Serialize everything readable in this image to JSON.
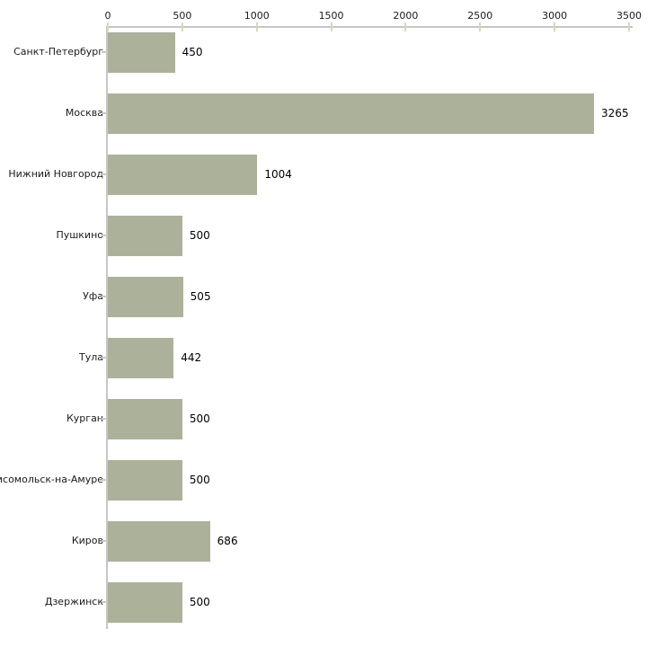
{
  "chart_data": {
    "type": "bar",
    "orientation": "horizontal",
    "title": "",
    "xlabel": "",
    "ylabel": "",
    "categories": [
      "Санкт-Петербург",
      "Москва",
      "Нижний Новгород",
      "Пушкино",
      "Уфа",
      "Тула",
      "Курган",
      "Комсомольск-на-Амуре",
      "Киров",
      "Дзержинск"
    ],
    "values": [
      450,
      3265,
      1004,
      500,
      505,
      442,
      500,
      500,
      686,
      500
    ],
    "value_labels": [
      "450",
      "3265",
      "1004",
      "500",
      "505",
      "442",
      "500",
      "500",
      "686",
      "500"
    ],
    "xlim": [
      0,
      3500
    ],
    "xticks": [
      0,
      500,
      1000,
      1500,
      2000,
      2500,
      3000,
      3500
    ],
    "xtick_labels": [
      "0",
      "500",
      "1000",
      "1500",
      "2000",
      "2500",
      "3000",
      "3500"
    ],
    "grid": false,
    "legend": null,
    "axis_position": "top-left",
    "colors": {
      "bar": "#acb199",
      "axis_line": "#c6c6c6",
      "x_tick_mark": "#d6d8b8",
      "y_tick_mark": "#c9c9c0",
      "label_text": "#1a1a1a",
      "value_text": "#000000",
      "background": "#ffffff"
    }
  }
}
